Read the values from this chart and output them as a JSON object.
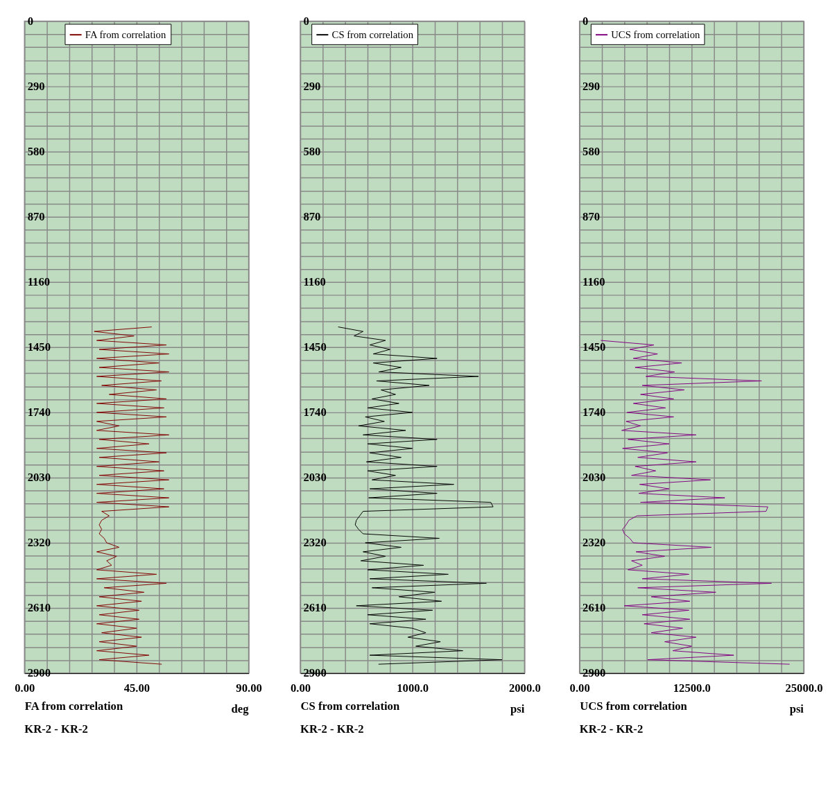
{
  "chart_data": [
    {
      "type": "line",
      "xlabel": "FA from correlation",
      "legend": "top",
      "grid": true,
      "annotations": [
        "deg",
        "KR-2 - KR-2"
      ],
      "xlim": [
        0,
        90
      ],
      "xticks": [
        {
          "value": 0,
          "label": "0.00"
        },
        {
          "value": 9,
          "label": null
        },
        {
          "value": 18,
          "label": null
        },
        {
          "value": 27,
          "label": null
        },
        {
          "value": 36,
          "label": null
        },
        {
          "value": 45,
          "label": "45.00"
        },
        {
          "value": 54,
          "label": null
        },
        {
          "value": 63,
          "label": null
        },
        {
          "value": 72,
          "label": null
        },
        {
          "value": 81,
          "label": null
        },
        {
          "value": 90,
          "label": "90.00"
        }
      ],
      "ylim": [
        2900,
        0
      ],
      "yticks": [
        0,
        {
          "value": 58,
          "label": null
        },
        {
          "value": 116,
          "label": null
        },
        {
          "value": 174,
          "label": null
        },
        {
          "value": 232,
          "label": null
        },
        290,
        {
          "value": 348,
          "label": null
        },
        {
          "value": 406,
          "label": null
        },
        {
          "value": 464,
          "label": null
        },
        {
          "value": 522,
          "label": null
        },
        580,
        {
          "value": 638,
          "label": null
        },
        {
          "value": 696,
          "label": null
        },
        {
          "value": 754,
          "label": null
        },
        {
          "value": 812,
          "label": null
        },
        870,
        {
          "value": 928,
          "label": null
        },
        {
          "value": 986,
          "label": null
        },
        {
          "value": 1044,
          "label": null
        },
        {
          "value": 1102,
          "label": null
        },
        1160,
        {
          "value": 1218,
          "label": null
        },
        {
          "value": 1276,
          "label": null
        },
        {
          "value": 1334,
          "label": null
        },
        {
          "value": 1392,
          "label": null
        },
        1450,
        {
          "value": 1508,
          "label": null
        },
        {
          "value": 1566,
          "label": null
        },
        {
          "value": 1624,
          "label": null
        },
        {
          "value": 1682,
          "label": null
        },
        1740,
        {
          "value": 1798,
          "label": null
        },
        {
          "value": 1856,
          "label": null
        },
        {
          "value": 1914,
          "label": null
        },
        {
          "value": 1972,
          "label": null
        },
        2030,
        {
          "value": 2088,
          "label": null
        },
        {
          "value": 2146,
          "label": null
        },
        {
          "value": 2204,
          "label": null
        },
        {
          "value": 2262,
          "label": null
        },
        2320,
        {
          "value": 2378,
          "label": null
        },
        {
          "value": 2436,
          "label": null
        },
        {
          "value": 2494,
          "label": null
        },
        {
          "value": 2552,
          "label": null
        },
        2610,
        {
          "value": 2668,
          "label": null
        },
        {
          "value": 2726,
          "label": null
        },
        {
          "value": 2784,
          "label": null
        },
        {
          "value": 2842,
          "label": null
        },
        2900
      ],
      "series": [
        {
          "name": "FA from correlation",
          "color": "#800000",
          "x": [
            51,
            28,
            44,
            29,
            57,
            30,
            58,
            29,
            54,
            30,
            58,
            29,
            55,
            31,
            53,
            34,
            57,
            29,
            56,
            29,
            57,
            29,
            38,
            29,
            58,
            30,
            50,
            29,
            57,
            30,
            54,
            29,
            56,
            30,
            58,
            29,
            56,
            29,
            58,
            29,
            58,
            31,
            34,
            31,
            30,
            31,
            30,
            32,
            33,
            38,
            29,
            37,
            33,
            35,
            29,
            53,
            29,
            57,
            32,
            48,
            30,
            47,
            29,
            46,
            30,
            46,
            29,
            45,
            31,
            47,
            30,
            45,
            29,
            50,
            30,
            55
          ],
          "values": [
            1360,
            1380,
            1400,
            1420,
            1440,
            1460,
            1480,
            1500,
            1520,
            1540,
            1560,
            1580,
            1600,
            1620,
            1640,
            1660,
            1680,
            1700,
            1720,
            1740,
            1760,
            1780,
            1800,
            1820,
            1840,
            1860,
            1880,
            1900,
            1920,
            1940,
            1960,
            1980,
            2000,
            2020,
            2040,
            2060,
            2080,
            2100,
            2120,
            2140,
            2160,
            2180,
            2200,
            2220,
            2240,
            2260,
            2280,
            2300,
            2320,
            2340,
            2360,
            2380,
            2400,
            2420,
            2440,
            2460,
            2480,
            2500,
            2520,
            2540,
            2560,
            2580,
            2600,
            2620,
            2640,
            2660,
            2680,
            2700,
            2720,
            2740,
            2760,
            2780,
            2800,
            2820,
            2840,
            2860
          ]
        }
      ]
    },
    {
      "type": "line",
      "xlabel": "CS from correlation",
      "legend": "top left",
      "grid": true,
      "annotations": [
        "psi",
        "KR-2 - KR-2"
      ],
      "xlim": [
        0,
        2000
      ],
      "xticks": [
        {
          "value": 0,
          "label": "0.00"
        },
        {
          "value": 200,
          "label": null
        },
        {
          "value": 400,
          "label": null
        },
        {
          "value": 600,
          "label": null
        },
        {
          "value": 800,
          "label": null
        },
        {
          "value": 1000,
          "label": "1000.0"
        },
        {
          "value": 1200,
          "label": null
        },
        {
          "value": 1400,
          "label": null
        },
        {
          "value": 1600,
          "label": null
        },
        {
          "value": 1800,
          "label": null
        },
        {
          "value": 2000,
          "label": "2000.0"
        }
      ],
      "ylim": [
        2900,
        0
      ],
      "yticks": [
        0,
        {
          "value": 58,
          "label": null
        },
        {
          "value": 116,
          "label": null
        },
        {
          "value": 174,
          "label": null
        },
        {
          "value": 232,
          "label": null
        },
        290,
        {
          "value": 348,
          "label": null
        },
        {
          "value": 406,
          "label": null
        },
        {
          "value": 464,
          "label": null
        },
        {
          "value": 522,
          "label": null
        },
        580,
        {
          "value": 638,
          "label": null
        },
        {
          "value": 696,
          "label": null
        },
        {
          "value": 754,
          "label": null
        },
        {
          "value": 812,
          "label": null
        },
        870,
        {
          "value": 928,
          "label": null
        },
        {
          "value": 986,
          "label": null
        },
        {
          "value": 1044,
          "label": null
        },
        {
          "value": 1102,
          "label": null
        },
        1160,
        {
          "value": 1218,
          "label": null
        },
        {
          "value": 1276,
          "label": null
        },
        {
          "value": 1334,
          "label": null
        },
        {
          "value": 1392,
          "label": null
        },
        1450,
        {
          "value": 1508,
          "label": null
        },
        {
          "value": 1566,
          "label": null
        },
        {
          "value": 1624,
          "label": null
        },
        {
          "value": 1682,
          "label": null
        },
        1740,
        {
          "value": 1798,
          "label": null
        },
        {
          "value": 1856,
          "label": null
        },
        {
          "value": 1914,
          "label": null
        },
        {
          "value": 1972,
          "label": null
        },
        2030,
        {
          "value": 2088,
          "label": null
        },
        {
          "value": 2146,
          "label": null
        },
        {
          "value": 2204,
          "label": null
        },
        {
          "value": 2262,
          "label": null
        },
        2320,
        {
          "value": 2378,
          "label": null
        },
        {
          "value": 2436,
          "label": null
        },
        {
          "value": 2494,
          "label": null
        },
        {
          "value": 2552,
          "label": null
        },
        2610,
        {
          "value": 2668,
          "label": null
        },
        {
          "value": 2726,
          "label": null
        },
        {
          "value": 2784,
          "label": null
        },
        {
          "value": 2842,
          "label": null
        },
        2900
      ],
      "series": [
        {
          "name": "CS from correlation",
          "color": "#000000",
          "x": [
            340,
            560,
            480,
            760,
            620,
            800,
            650,
            1220,
            650,
            900,
            700,
            1590,
            680,
            1150,
            720,
            850,
            640,
            880,
            600,
            1000,
            580,
            750,
            520,
            940,
            560,
            1220,
            600,
            1000,
            620,
            900,
            590,
            1220,
            600,
            850,
            640,
            1370,
            620,
            1220,
            610,
            1700,
            1720,
            560,
            530,
            500,
            490,
            520,
            560,
            1240,
            580,
            900,
            560,
            760,
            540,
            1100,
            600,
            1320,
            620,
            1660,
            640,
            1200,
            880,
            1260,
            500,
            1180,
            600,
            1120,
            620,
            1000,
            1120,
            960,
            1250,
            1030,
            1450,
            620,
            1800,
            700
          ],
          "values": [
            1360,
            1380,
            1400,
            1420,
            1440,
            1460,
            1480,
            1500,
            1520,
            1540,
            1560,
            1580,
            1600,
            1620,
            1640,
            1660,
            1680,
            1700,
            1720,
            1740,
            1760,
            1780,
            1800,
            1820,
            1840,
            1860,
            1880,
            1900,
            1920,
            1940,
            1960,
            1980,
            2000,
            2020,
            2040,
            2060,
            2080,
            2100,
            2120,
            2140,
            2160,
            2180,
            2200,
            2220,
            2240,
            2260,
            2280,
            2300,
            2320,
            2340,
            2360,
            2380,
            2400,
            2420,
            2440,
            2460,
            2480,
            2500,
            2520,
            2540,
            2560,
            2580,
            2600,
            2620,
            2640,
            2660,
            2680,
            2700,
            2720,
            2740,
            2760,
            2780,
            2800,
            2820,
            2840,
            2860
          ]
        }
      ]
    },
    {
      "type": "line",
      "xlabel": "UCS from correlation",
      "legend": "top left",
      "grid": true,
      "annotations": [
        "psi",
        "KR-2 - KR-2"
      ],
      "xlim": [
        0,
        25000
      ],
      "xticks": [
        {
          "value": 0,
          "label": "0.00"
        },
        {
          "value": 2500,
          "label": null
        },
        {
          "value": 5000,
          "label": null
        },
        {
          "value": 7500,
          "label": null
        },
        {
          "value": 10000,
          "label": null
        },
        {
          "value": 12500,
          "label": "12500.0"
        },
        {
          "value": 15000,
          "label": null
        },
        {
          "value": 17500,
          "label": null
        },
        {
          "value": 20000,
          "label": null
        },
        {
          "value": 22500,
          "label": null
        },
        {
          "value": 25000,
          "label": "25000.0"
        }
      ],
      "ylim": [
        2900,
        0
      ],
      "yticks": [
        0,
        {
          "value": 58,
          "label": null
        },
        {
          "value": 116,
          "label": null
        },
        {
          "value": 174,
          "label": null
        },
        {
          "value": 232,
          "label": null
        },
        290,
        {
          "value": 348,
          "label": null
        },
        {
          "value": 406,
          "label": null
        },
        {
          "value": 464,
          "label": null
        },
        {
          "value": 522,
          "label": null
        },
        580,
        {
          "value": 638,
          "label": null
        },
        {
          "value": 696,
          "label": null
        },
        {
          "value": 754,
          "label": null
        },
        {
          "value": 812,
          "label": null
        },
        870,
        {
          "value": 928,
          "label": null
        },
        {
          "value": 986,
          "label": null
        },
        {
          "value": 1044,
          "label": null
        },
        {
          "value": 1102,
          "label": null
        },
        1160,
        {
          "value": 1218,
          "label": null
        },
        {
          "value": 1276,
          "label": null
        },
        {
          "value": 1334,
          "label": null
        },
        {
          "value": 1392,
          "label": null
        },
        1450,
        {
          "value": 1508,
          "label": null
        },
        {
          "value": 1566,
          "label": null
        },
        {
          "value": 1624,
          "label": null
        },
        {
          "value": 1682,
          "label": null
        },
        1740,
        {
          "value": 1798,
          "label": null
        },
        {
          "value": 1856,
          "label": null
        },
        {
          "value": 1914,
          "label": null
        },
        {
          "value": 1972,
          "label": null
        },
        2030,
        {
          "value": 2088,
          "label": null
        },
        {
          "value": 2146,
          "label": null
        },
        {
          "value": 2204,
          "label": null
        },
        {
          "value": 2262,
          "label": null
        },
        2320,
        {
          "value": 2378,
          "label": null
        },
        {
          "value": 2436,
          "label": null
        },
        {
          "value": 2494,
          "label": null
        },
        {
          "value": 2552,
          "label": null
        },
        2610,
        {
          "value": 2668,
          "label": null
        },
        {
          "value": 2726,
          "label": null
        },
        {
          "value": 2784,
          "label": null
        },
        {
          "value": 2842,
          "label": null
        },
        2900
      ],
      "series": [
        {
          "name": "UCS from correlation",
          "color": "#800080",
          "x": [
            2400,
            8300,
            5600,
            8700,
            6000,
            11400,
            6200,
            10600,
            7400,
            20300,
            7000,
            11700,
            6800,
            10500,
            6000,
            9600,
            5300,
            10500,
            5200,
            6800,
            4700,
            13000,
            5400,
            10000,
            4800,
            9800,
            6500,
            13000,
            6200,
            8500,
            5800,
            14600,
            6700,
            10000,
            6600,
            16200,
            6800,
            21000,
            20800,
            6400,
            5500,
            5200,
            4800,
            5000,
            5600,
            6000,
            14700,
            6300,
            9500,
            5800,
            7000,
            5400,
            12200,
            7000,
            21400,
            6500,
            15200,
            8000,
            12300,
            5000,
            12200,
            7000,
            12300,
            7200,
            11500,
            8000,
            13000,
            9500,
            12500,
            10400,
            17200,
            7600,
            23400
          ],
          "values": [
            1420,
            1440,
            1460,
            1480,
            1500,
            1520,
            1540,
            1560,
            1580,
            1600,
            1620,
            1640,
            1660,
            1680,
            1700,
            1720,
            1740,
            1760,
            1780,
            1800,
            1820,
            1840,
            1860,
            1880,
            1900,
            1920,
            1940,
            1960,
            1980,
            2000,
            2020,
            2040,
            2060,
            2080,
            2100,
            2120,
            2140,
            2160,
            2180,
            2200,
            2220,
            2240,
            2260,
            2280,
            2300,
            2320,
            2340,
            2360,
            2380,
            2400,
            2420,
            2440,
            2460,
            2480,
            2500,
            2520,
            2540,
            2560,
            2580,
            2600,
            2620,
            2640,
            2660,
            2680,
            2700,
            2720,
            2740,
            2760,
            2780,
            2800,
            2820,
            2840,
            2860
          ]
        }
      ]
    }
  ]
}
